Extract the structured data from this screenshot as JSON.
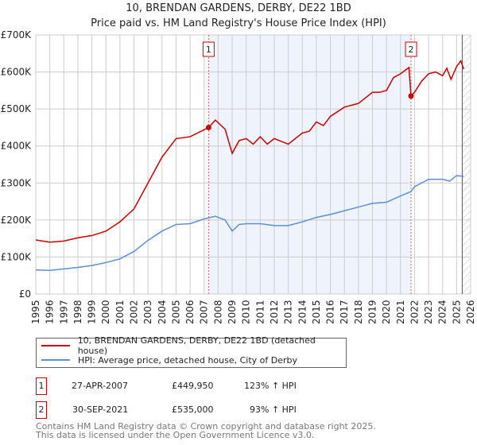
{
  "chart_data": {
    "type": "line",
    "title": "10, BRENDAN GARDENS, DERBY, DE22 1BD",
    "subtitle": "Price paid vs. HM Land Registry's House Price Index (HPI)",
    "xlim": [
      1995,
      2026
    ],
    "ylim": [
      0,
      700000
    ],
    "yticks": [
      {
        "v": 0,
        "label": "£0"
      },
      {
        "v": 100000,
        "label": "£100K"
      },
      {
        "v": 200000,
        "label": "£200K"
      },
      {
        "v": 300000,
        "label": "£300K"
      },
      {
        "v": 400000,
        "label": "£400K"
      },
      {
        "v": 500000,
        "label": "£500K"
      },
      {
        "v": 600000,
        "label": "£600K"
      },
      {
        "v": 700000,
        "label": "£700K"
      }
    ],
    "xticks": [
      "1995",
      "1996",
      "1997",
      "1998",
      "1999",
      "2000",
      "2001",
      "2002",
      "2003",
      "2004",
      "2005",
      "2006",
      "2007",
      "2008",
      "2009",
      "2010",
      "2011",
      "2012",
      "2013",
      "2014",
      "2015",
      "2016",
      "2017",
      "2018",
      "2019",
      "2020",
      "2021",
      "2022",
      "2023",
      "2024",
      "2025",
      "2026"
    ],
    "grid": true,
    "shaded_range": [
      2007.32,
      2021.75
    ],
    "hatched_from": 2025.4,
    "series": [
      {
        "name": "10, BRENDAN GARDENS, DERBY, DE22 1BD (detached house)",
        "color": "#cc0000",
        "x": [
          1995,
          1996,
          1997,
          1998,
          1999,
          2000,
          2001,
          2002,
          2003,
          2004,
          2005,
          2006,
          2007.32,
          2007.8,
          2008.5,
          2009,
          2009.5,
          2010,
          2010.5,
          2011,
          2011.5,
          2012,
          2013,
          2014,
          2014.5,
          2015,
          2015.5,
          2016,
          2017,
          2018,
          2018.5,
          2019,
          2019.5,
          2020,
          2020.5,
          2021,
          2021.6,
          2021.75,
          2022,
          2022.5,
          2023,
          2023.5,
          2024,
          2024.3,
          2024.6,
          2025,
          2025.3,
          2025.5
        ],
        "y": [
          146000,
          140000,
          143000,
          152000,
          158000,
          170000,
          195000,
          230000,
          300000,
          370000,
          420000,
          425000,
          449950,
          470000,
          445000,
          380000,
          415000,
          420000,
          405000,
          425000,
          405000,
          420000,
          405000,
          435000,
          440000,
          465000,
          455000,
          480000,
          505000,
          515000,
          530000,
          545000,
          545000,
          550000,
          585000,
          595000,
          612000,
          535000,
          545000,
          575000,
          595000,
          600000,
          590000,
          610000,
          580000,
          615000,
          630000,
          608000
        ]
      },
      {
        "name": "HPI: Average price, detached house, City of Derby",
        "color": "#5b8fd6",
        "x": [
          1995,
          1996,
          1997,
          1998,
          1999,
          2000,
          2001,
          2002,
          2003,
          2004,
          2005,
          2006,
          2007,
          2007.8,
          2008.5,
          2009,
          2009.5,
          2010,
          2011,
          2012,
          2013,
          2014,
          2015,
          2016,
          2017,
          2018,
          2019,
          2020,
          2021,
          2021.75,
          2022,
          2023,
          2024,
          2024.5,
          2025,
          2025.5
        ],
        "y": [
          65000,
          64000,
          68000,
          72000,
          77000,
          85000,
          95000,
          115000,
          145000,
          170000,
          188000,
          190000,
          203000,
          210000,
          200000,
          170000,
          188000,
          190000,
          190000,
          185000,
          185000,
          195000,
          207000,
          215000,
          225000,
          235000,
          245000,
          248000,
          265000,
          277000,
          290000,
          310000,
          310000,
          305000,
          320000,
          318000
        ]
      }
    ],
    "markers": [
      {
        "label": "1",
        "x": 2007.32,
        "y": 449950
      },
      {
        "label": "2",
        "x": 2021.75,
        "y": 535000
      }
    ]
  },
  "transactions": [
    {
      "num": "1",
      "date": "27-APR-2007",
      "price": "£449,950",
      "hpi": "123% ↑ HPI"
    },
    {
      "num": "2",
      "date": "30-SEP-2021",
      "price": "£535,000",
      "hpi": "93% ↑ HPI"
    }
  ],
  "footer": [
    "Contains HM Land Registry data © Crown copyright and database right 2025.",
    "This data is licensed under the Open Government Licence v3.0."
  ]
}
